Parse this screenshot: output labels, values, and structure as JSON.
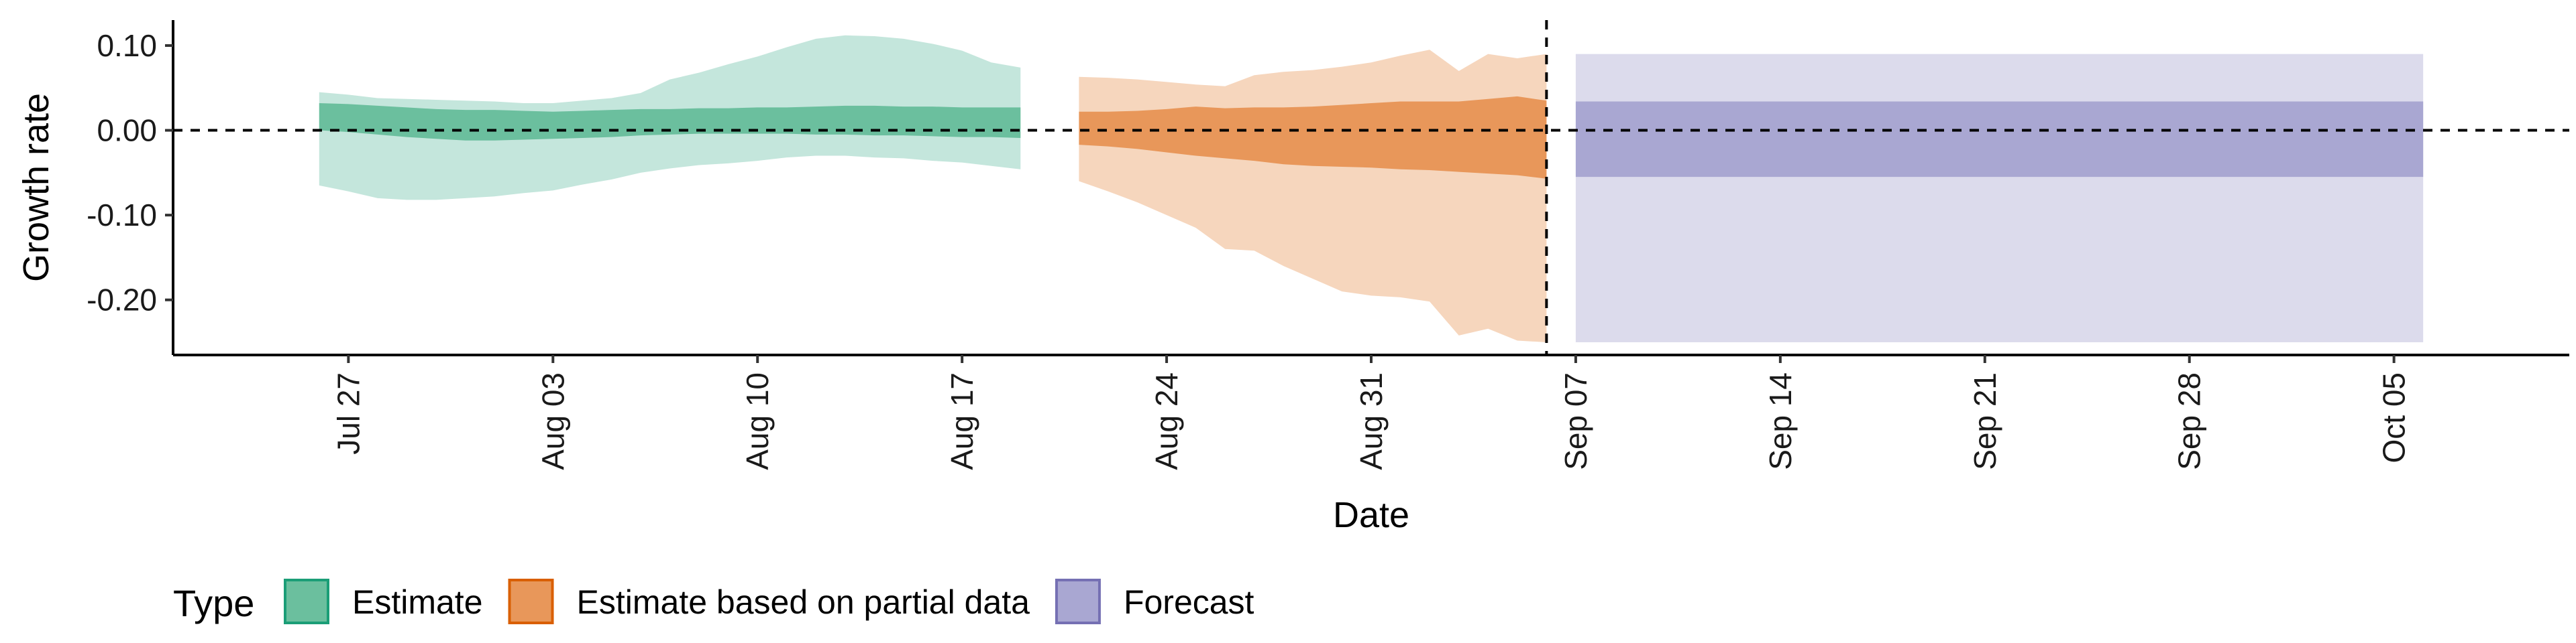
{
  "chart_data": {
    "type": "area",
    "xlabel": "Date",
    "ylabel": "Growth rate",
    "x_range": [
      "2020-07-21",
      "2020-10-11"
    ],
    "ylim": [
      -0.265,
      0.13
    ],
    "y_ticks": [
      0.1,
      0.0,
      -0.1,
      -0.2
    ],
    "y_tick_labels": [
      "0.10",
      "0.00",
      "-0.10",
      "-0.20"
    ],
    "x_ticks": [
      "2020-07-27",
      "2020-08-03",
      "2020-08-10",
      "2020-08-17",
      "2020-08-24",
      "2020-08-31",
      "2020-09-07",
      "2020-09-14",
      "2020-09-21",
      "2020-09-28",
      "2020-10-05"
    ],
    "x_tick_labels": [
      "Jul 27",
      "Aug 03",
      "Aug 10",
      "Aug 17",
      "Aug 24",
      "Aug 31",
      "Sep 07",
      "Sep 14",
      "Sep 21",
      "Sep 28",
      "Oct 05"
    ],
    "reference_line_y": 0.0,
    "vertical_line_x": "2020-09-06",
    "legend": {
      "title": "Type",
      "position": "bottom",
      "entries": [
        "Estimate",
        "Estimate based on partial data",
        "Forecast"
      ]
    },
    "series": [
      {
        "name": "Estimate",
        "fill_inner": "#6bbf9e",
        "fill_outer": "#c4e6dc",
        "stroke": "#1b9e77",
        "x": [
          "2020-07-26",
          "2020-07-27",
          "2020-07-28",
          "2020-07-29",
          "2020-07-30",
          "2020-07-31",
          "2020-08-01",
          "2020-08-02",
          "2020-08-03",
          "2020-08-04",
          "2020-08-05",
          "2020-08-06",
          "2020-08-07",
          "2020-08-08",
          "2020-08-09",
          "2020-08-10",
          "2020-08-11",
          "2020-08-12",
          "2020-08-13",
          "2020-08-14",
          "2020-08-15",
          "2020-08-16",
          "2020-08-17",
          "2020-08-18",
          "2020-08-19"
        ],
        "outer_high": [
          0.045,
          0.042,
          0.038,
          0.037,
          0.036,
          0.035,
          0.034,
          0.032,
          0.032,
          0.035,
          0.038,
          0.044,
          0.06,
          0.068,
          0.078,
          0.087,
          0.098,
          0.108,
          0.112,
          0.111,
          0.108,
          0.102,
          0.094,
          0.08,
          0.074
        ],
        "inner_high": [
          0.032,
          0.031,
          0.029,
          0.027,
          0.025,
          0.024,
          0.024,
          0.023,
          0.022,
          0.023,
          0.024,
          0.025,
          0.025,
          0.026,
          0.026,
          0.027,
          0.027,
          0.028,
          0.029,
          0.029,
          0.028,
          0.028,
          0.027,
          0.027,
          0.027
        ],
        "inner_low": [
          0.0,
          -0.002,
          -0.005,
          -0.008,
          -0.01,
          -0.012,
          -0.012,
          -0.011,
          -0.01,
          -0.009,
          -0.008,
          -0.006,
          -0.005,
          -0.004,
          -0.004,
          -0.004,
          -0.004,
          -0.005,
          -0.005,
          -0.006,
          -0.006,
          -0.007,
          -0.008,
          -0.008,
          -0.009
        ],
        "outer_low": [
          -0.065,
          -0.072,
          -0.08,
          -0.082,
          -0.082,
          -0.08,
          -0.078,
          -0.074,
          -0.071,
          -0.064,
          -0.058,
          -0.05,
          -0.045,
          -0.041,
          -0.039,
          -0.036,
          -0.032,
          -0.03,
          -0.03,
          -0.032,
          -0.033,
          -0.036,
          -0.038,
          -0.042,
          -0.046
        ]
      },
      {
        "name": "Estimate based on partial data",
        "fill_inner": "#e8975a",
        "fill_outer": "#f6d6bd",
        "stroke": "#d95f02",
        "x": [
          "2020-08-21",
          "2020-08-22",
          "2020-08-23",
          "2020-08-24",
          "2020-08-25",
          "2020-08-26",
          "2020-08-27",
          "2020-08-28",
          "2020-08-29",
          "2020-08-30",
          "2020-08-31",
          "2020-09-01",
          "2020-09-02",
          "2020-09-03",
          "2020-09-04",
          "2020-09-05",
          "2020-09-06"
        ],
        "outer_high": [
          0.063,
          0.062,
          0.06,
          0.057,
          0.054,
          0.052,
          0.065,
          0.069,
          0.071,
          0.075,
          0.08,
          0.088,
          0.095,
          0.07,
          0.09,
          0.085,
          0.09
        ],
        "inner_high": [
          0.022,
          0.022,
          0.023,
          0.025,
          0.028,
          0.026,
          0.027,
          0.027,
          0.028,
          0.03,
          0.032,
          0.034,
          0.034,
          0.034,
          0.037,
          0.04,
          0.035
        ],
        "inner_low": [
          -0.017,
          -0.019,
          -0.022,
          -0.026,
          -0.03,
          -0.033,
          -0.036,
          -0.04,
          -0.042,
          -0.043,
          -0.044,
          -0.046,
          -0.047,
          -0.049,
          -0.051,
          -0.053,
          -0.057
        ],
        "outer_low": [
          -0.06,
          -0.072,
          -0.085,
          -0.1,
          -0.115,
          -0.14,
          -0.142,
          -0.16,
          -0.175,
          -0.19,
          -0.195,
          -0.197,
          -0.202,
          -0.242,
          -0.234,
          -0.248,
          -0.25
        ]
      },
      {
        "name": "Forecast",
        "fill_inner": "#a9a7d2",
        "fill_outer": "#dcdbec",
        "stroke": "#7570b3",
        "x": [
          "2020-09-07",
          "2020-10-06"
        ],
        "outer_high": [
          0.09,
          0.09
        ],
        "inner_high": [
          0.034,
          0.034
        ],
        "inner_low": [
          -0.055,
          -0.055
        ],
        "outer_low": [
          -0.25,
          -0.25
        ]
      }
    ]
  }
}
